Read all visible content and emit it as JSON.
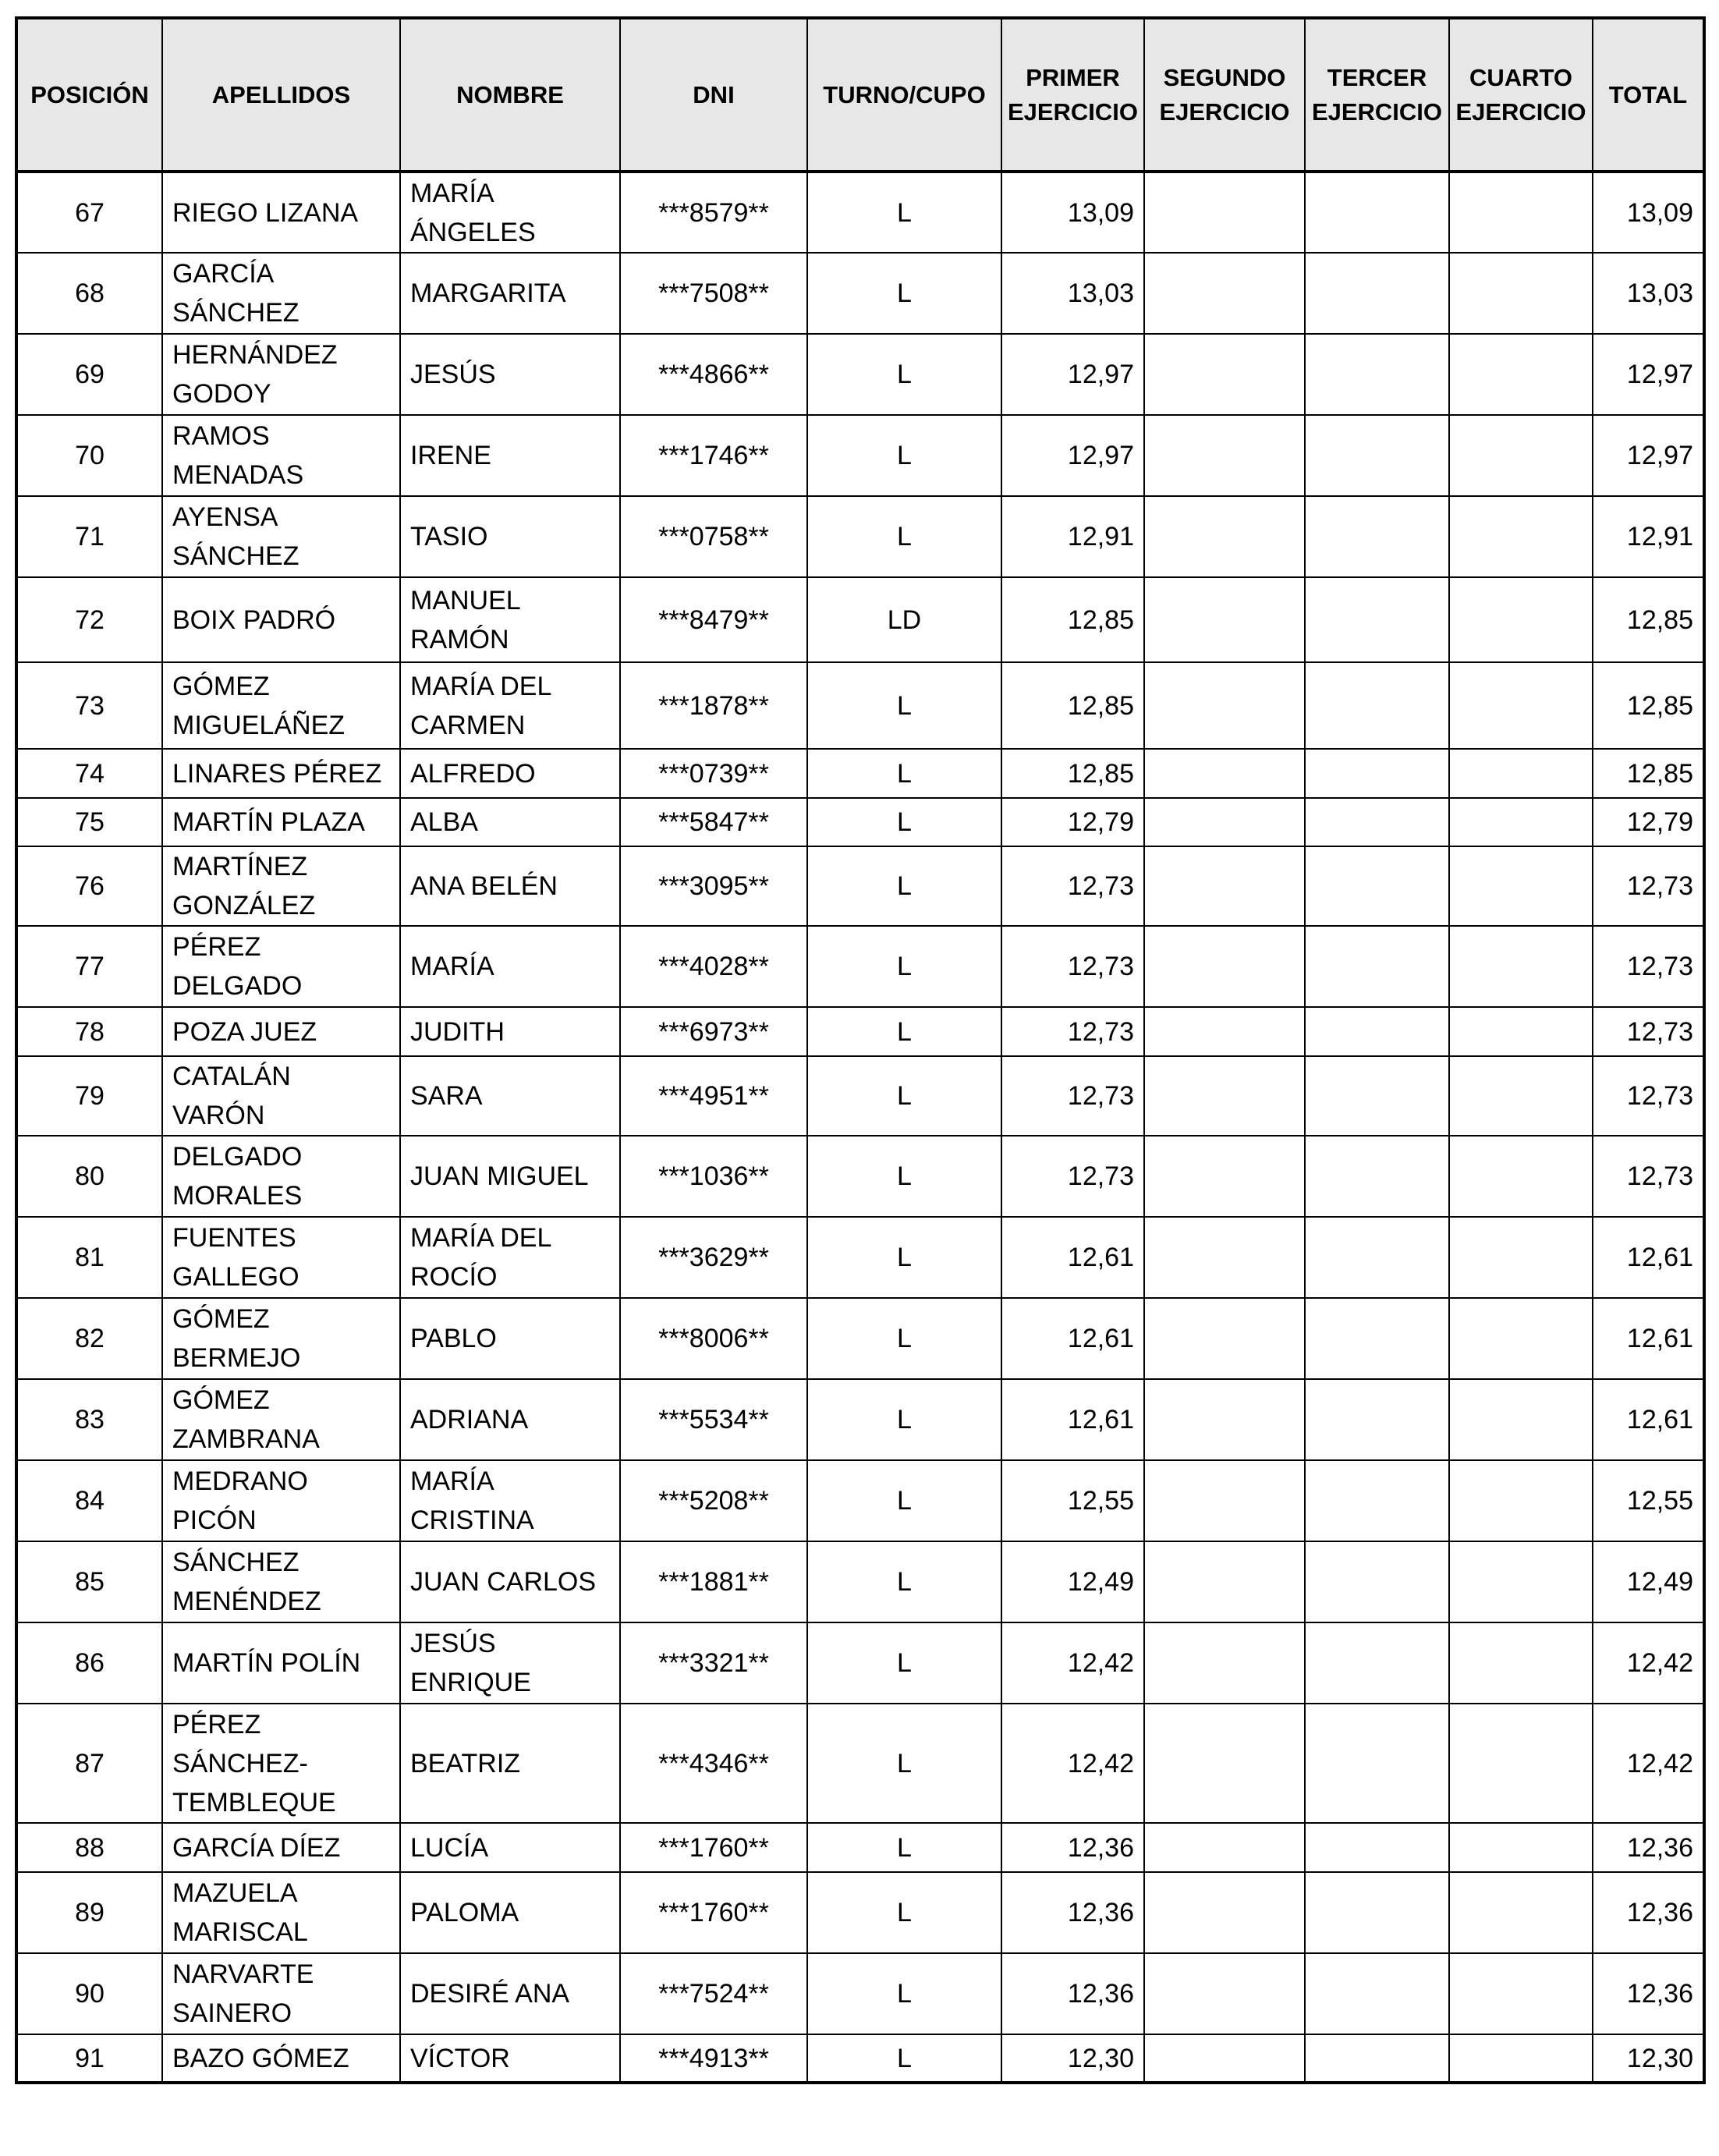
{
  "table": {
    "headers": [
      "POSICIÓN",
      "APELLIDOS",
      "NOMBRE",
      "DNI",
      "TURNO/CUPO",
      "PRIMER EJERCICIO",
      "SEGUNDO EJERCICIO",
      "TERCER EJERCICIO",
      "CUARTO EJERCICIO",
      "TOTAL"
    ],
    "rows": [
      {
        "pos": "67",
        "apellidos": "RIEGO LIZANA",
        "nombre": "MARÍA\nÁNGELES",
        "dni": "***8579**",
        "turno": "L",
        "primer": "13,09",
        "segundo": "",
        "tercer": "",
        "cuarto": "",
        "total": "13,09"
      },
      {
        "pos": "68",
        "apellidos": "GARCÍA\nSÁNCHEZ",
        "nombre": "MARGARITA",
        "dni": "***7508**",
        "turno": "L",
        "primer": "13,03",
        "segundo": "",
        "tercer": "",
        "cuarto": "",
        "total": "13,03"
      },
      {
        "pos": "69",
        "apellidos": "HERNÁNDEZ\nGODOY",
        "nombre": "JESÚS",
        "dni": "***4866**",
        "turno": "L",
        "primer": "12,97",
        "segundo": "",
        "tercer": "",
        "cuarto": "",
        "total": "12,97"
      },
      {
        "pos": "70",
        "apellidos": "RAMOS\nMENADAS",
        "nombre": "IRENE",
        "dni": "***1746**",
        "turno": "L",
        "primer": "12,97",
        "segundo": "",
        "tercer": "",
        "cuarto": "",
        "total": "12,97"
      },
      {
        "pos": "71",
        "apellidos": "AYENSA\nSÁNCHEZ",
        "nombre": "TASIO",
        "dni": "***0758**",
        "turno": "L",
        "primer": "12,91",
        "segundo": "",
        "tercer": "",
        "cuarto": "",
        "total": "12,91"
      },
      {
        "pos": "72",
        "apellidos": "BOIX PADRÓ",
        "nombre": "MANUEL\nRAMÓN",
        "dni": "***8479**",
        "turno": "LD",
        "primer": "12,85",
        "segundo": "",
        "tercer": "",
        "cuarto": "",
        "total": "12,85"
      },
      {
        "pos": "73",
        "apellidos": "GÓMEZ\nMIGUELÁÑEZ",
        "nombre": "MARÍA DEL\nCARMEN",
        "dni": "***1878**",
        "turno": "L",
        "primer": "12,85",
        "segundo": "",
        "tercer": "",
        "cuarto": "",
        "total": "12,85"
      },
      {
        "pos": "74",
        "apellidos": "LINARES PÉREZ",
        "nombre": "ALFREDO",
        "dni": "***0739**",
        "turno": "L",
        "primer": "12,85",
        "segundo": "",
        "tercer": "",
        "cuarto": "",
        "total": "12,85"
      },
      {
        "pos": "75",
        "apellidos": "MARTÍN PLAZA",
        "nombre": "ALBA",
        "dni": "***5847**",
        "turno": "L",
        "primer": "12,79",
        "segundo": "",
        "tercer": "",
        "cuarto": "",
        "total": "12,79"
      },
      {
        "pos": "76",
        "apellidos": "MARTÍNEZ\nGONZÁLEZ",
        "nombre": "ANA BELÉN",
        "dni": "***3095**",
        "turno": "L",
        "primer": "12,73",
        "segundo": "",
        "tercer": "",
        "cuarto": "",
        "total": "12,73"
      },
      {
        "pos": "77",
        "apellidos": "PÉREZ\nDELGADO",
        "nombre": "MARÍA",
        "dni": "***4028**",
        "turno": "L",
        "primer": "12,73",
        "segundo": "",
        "tercer": "",
        "cuarto": "",
        "total": "12,73"
      },
      {
        "pos": "78",
        "apellidos": "POZA JUEZ",
        "nombre": "JUDITH",
        "dni": "***6973**",
        "turno": "L",
        "primer": "12,73",
        "segundo": "",
        "tercer": "",
        "cuarto": "",
        "total": "12,73"
      },
      {
        "pos": "79",
        "apellidos": "CATALÁN\nVARÓN",
        "nombre": "SARA",
        "dni": "***4951**",
        "turno": "L",
        "primer": "12,73",
        "segundo": "",
        "tercer": "",
        "cuarto": "",
        "total": "12,73"
      },
      {
        "pos": "80",
        "apellidos": "DELGADO\nMORALES",
        "nombre": "JUAN MIGUEL",
        "dni": "***1036**",
        "turno": "L",
        "primer": "12,73",
        "segundo": "",
        "tercer": "",
        "cuarto": "",
        "total": "12,73"
      },
      {
        "pos": "81",
        "apellidos": "FUENTES\nGALLEGO",
        "nombre": "MARÍA DEL\nROCÍO",
        "dni": "***3629**",
        "turno": "L",
        "primer": "12,61",
        "segundo": "",
        "tercer": "",
        "cuarto": "",
        "total": "12,61"
      },
      {
        "pos": "82",
        "apellidos": "GÓMEZ\nBERMEJO",
        "nombre": "PABLO",
        "dni": "***8006**",
        "turno": "L",
        "primer": "12,61",
        "segundo": "",
        "tercer": "",
        "cuarto": "",
        "total": "12,61"
      },
      {
        "pos": "83",
        "apellidos": "GÓMEZ\nZAMBRANA",
        "nombre": "ADRIANA",
        "dni": "***5534**",
        "turno": "L",
        "primer": "12,61",
        "segundo": "",
        "tercer": "",
        "cuarto": "",
        "total": "12,61"
      },
      {
        "pos": "84",
        "apellidos": "MEDRANO\nPICÓN",
        "nombre": "MARÍA\nCRISTINA",
        "dni": "***5208**",
        "turno": "L",
        "primer": "12,55",
        "segundo": "",
        "tercer": "",
        "cuarto": "",
        "total": "12,55"
      },
      {
        "pos": "85",
        "apellidos": "SÁNCHEZ\nMENÉNDEZ",
        "nombre": "JUAN CARLOS",
        "dni": "***1881**",
        "turno": "L",
        "primer": "12,49",
        "segundo": "",
        "tercer": "",
        "cuarto": "",
        "total": "12,49"
      },
      {
        "pos": "86",
        "apellidos": "MARTÍN POLÍN",
        "nombre": "JESÚS\nENRIQUE",
        "dni": "***3321**",
        "turno": "L",
        "primer": "12,42",
        "segundo": "",
        "tercer": "",
        "cuarto": "",
        "total": "12,42"
      },
      {
        "pos": "87",
        "apellidos": "PÉREZ\nSÁNCHEZ-\nTEMBLEQUE",
        "nombre": "BEATRIZ",
        "dni": "***4346**",
        "turno": "L",
        "primer": "12,42",
        "segundo": "",
        "tercer": "",
        "cuarto": "",
        "total": "12,42"
      },
      {
        "pos": "88",
        "apellidos": "GARCÍA DÍEZ",
        "nombre": "LUCÍA",
        "dni": "***1760**",
        "turno": "L",
        "primer": "12,36",
        "segundo": "",
        "tercer": "",
        "cuarto": "",
        "total": "12,36"
      },
      {
        "pos": "89",
        "apellidos": "MAZUELA\nMARISCAL",
        "nombre": "PALOMA",
        "dni": "***1760**",
        "turno": "L",
        "primer": "12,36",
        "segundo": "",
        "tercer": "",
        "cuarto": "",
        "total": "12,36"
      },
      {
        "pos": "90",
        "apellidos": "NARVARTE\nSAINERO",
        "nombre": "DESIRÉ ANA",
        "dni": "***7524**",
        "turno": "L",
        "primer": "12,36",
        "segundo": "",
        "tercer": "",
        "cuarto": "",
        "total": "12,36"
      },
      {
        "pos": "91",
        "apellidos": "BAZO GÓMEZ",
        "nombre": "VÍCTOR",
        "dni": "***4913**",
        "turno": "L",
        "primer": "12,30",
        "segundo": "",
        "tercer": "",
        "cuarto": "",
        "total": "12,30"
      }
    ]
  }
}
